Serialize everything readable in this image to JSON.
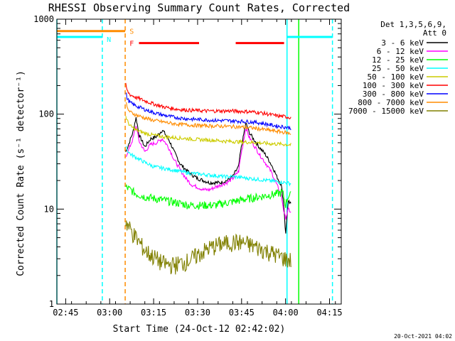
{
  "chart_data": {
    "type": "line",
    "title": "RHESSI Observing Summary Count Rates, Corrected",
    "xlabel": "Start Time (24-Oct-12 02:42:02)",
    "ylabel": "Corrected Count Rate (s⁻¹ detector⁻¹)",
    "yscale": "log",
    "ylim": [
      1,
      1000
    ],
    "y_ticks": [
      {
        "v": 1,
        "label": "1"
      },
      {
        "v": 10,
        "label": "10"
      },
      {
        "v": 100,
        "label": "100"
      },
      {
        "v": 1000,
        "label": "1000"
      }
    ],
    "xlim_minutes": [
      0,
      97
    ],
    "x_ticks": [
      {
        "t": 3,
        "label": "02:45"
      },
      {
        "t": 18,
        "label": "03:00"
      },
      {
        "t": 33,
        "label": "03:15"
      },
      {
        "t": 48,
        "label": "03:30"
      },
      {
        "t": 63,
        "label": "03:45"
      },
      {
        "t": 78,
        "label": "04:00"
      },
      {
        "t": 93,
        "label": "04:15"
      }
    ],
    "legend_title": [
      "Det 1,3,5,6,9,",
      "Att 0"
    ],
    "series": [
      {
        "name": "3 - 6 keV",
        "color": "#000000",
        "points": [
          [
            23.5,
            40
          ],
          [
            24.5,
            48
          ],
          [
            26,
            65
          ],
          [
            27,
            92
          ],
          [
            28,
            60
          ],
          [
            30,
            45
          ],
          [
            32,
            55
          ],
          [
            34,
            58
          ],
          [
            36,
            68
          ],
          [
            38,
            55
          ],
          [
            40,
            40
          ],
          [
            42,
            30
          ],
          [
            44,
            26
          ],
          [
            46,
            23
          ],
          [
            48,
            21
          ],
          [
            50,
            20
          ],
          [
            52,
            19
          ],
          [
            54,
            19
          ],
          [
            56,
            19
          ],
          [
            58,
            20
          ],
          [
            60,
            22
          ],
          [
            62,
            28
          ],
          [
            63.5,
            55
          ],
          [
            64.5,
            80
          ],
          [
            65.5,
            65
          ],
          [
            67,
            55
          ],
          [
            69,
            45
          ],
          [
            71,
            38
          ],
          [
            73,
            30
          ],
          [
            75,
            22
          ],
          [
            76.5,
            18
          ],
          [
            77.5,
            10
          ],
          [
            78,
            5
          ],
          [
            79,
            12
          ],
          [
            80,
            11
          ]
        ]
      },
      {
        "name": "6 - 12 keV",
        "color": "#ff00ff",
        "points": [
          [
            23.5,
            36
          ],
          [
            24.5,
            42
          ],
          [
            26,
            55
          ],
          [
            27,
            75
          ],
          [
            28,
            52
          ],
          [
            30,
            40
          ],
          [
            32,
            48
          ],
          [
            34,
            50
          ],
          [
            36,
            55
          ],
          [
            38,
            45
          ],
          [
            40,
            33
          ],
          [
            42,
            26
          ],
          [
            44,
            21
          ],
          [
            46,
            18
          ],
          [
            48,
            17
          ],
          [
            50,
            16
          ],
          [
            52,
            16
          ],
          [
            54,
            17
          ],
          [
            56,
            18
          ],
          [
            58,
            19
          ],
          [
            60,
            21
          ],
          [
            62,
            25
          ],
          [
            63.5,
            48
          ],
          [
            64.5,
            72
          ],
          [
            65.5,
            58
          ],
          [
            67,
            48
          ],
          [
            69,
            38
          ],
          [
            71,
            31
          ],
          [
            73,
            25
          ],
          [
            75,
            18
          ],
          [
            76.5,
            14
          ],
          [
            77.5,
            9
          ],
          [
            78,
            8
          ],
          [
            79,
            10
          ],
          [
            80,
            9
          ]
        ]
      },
      {
        "name": "12 - 25 keV",
        "color": "#00ff00",
        "points": [
          [
            23.5,
            17
          ],
          [
            25,
            16
          ],
          [
            27,
            14.5
          ],
          [
            30,
            13.5
          ],
          [
            33,
            13
          ],
          [
            36,
            12.5
          ],
          [
            39,
            12
          ],
          [
            42,
            11.5
          ],
          [
            45,
            11
          ],
          [
            48,
            11
          ],
          [
            51,
            11
          ],
          [
            54,
            11
          ],
          [
            57,
            11.5
          ],
          [
            60,
            12
          ],
          [
            63,
            12.5
          ],
          [
            66,
            13
          ],
          [
            69,
            13.5
          ],
          [
            72,
            14
          ],
          [
            75,
            14.5
          ],
          [
            77,
            15
          ],
          [
            78,
            11
          ],
          [
            79,
            14
          ],
          [
            80,
            14
          ]
        ]
      },
      {
        "name": "25 - 50 keV",
        "color": "#00ffff",
        "points": [
          [
            23.5,
            48
          ],
          [
            24,
            42
          ],
          [
            25,
            38
          ],
          [
            27,
            35
          ],
          [
            30,
            31
          ],
          [
            33,
            28
          ],
          [
            36,
            27
          ],
          [
            39,
            26
          ],
          [
            42,
            25
          ],
          [
            45,
            24
          ],
          [
            48,
            23.5
          ],
          [
            51,
            23
          ],
          [
            54,
            22.5
          ],
          [
            57,
            22
          ],
          [
            60,
            22
          ],
          [
            63,
            21.5
          ],
          [
            66,
            21
          ],
          [
            69,
            20.5
          ],
          [
            72,
            20
          ],
          [
            75,
            19.5
          ],
          [
            78,
            19
          ],
          [
            80,
            18.5
          ]
        ]
      },
      {
        "name": "50 - 100 keV",
        "color": "#cccc00",
        "points": [
          [
            23.5,
            95
          ],
          [
            24,
            85
          ],
          [
            25,
            75
          ],
          [
            27,
            68
          ],
          [
            30,
            63
          ],
          [
            33,
            60
          ],
          [
            36,
            58
          ],
          [
            39,
            57
          ],
          [
            42,
            56
          ],
          [
            45,
            55
          ],
          [
            48,
            54
          ],
          [
            51,
            53.5
          ],
          [
            54,
            53
          ],
          [
            57,
            52
          ],
          [
            60,
            51.5
          ],
          [
            63,
            51
          ],
          [
            66,
            50.5
          ],
          [
            69,
            50
          ],
          [
            72,
            49
          ],
          [
            75,
            48.5
          ],
          [
            78,
            48
          ],
          [
            80,
            47.5
          ]
        ]
      },
      {
        "name": "100 - 300 keV",
        "color": "#ff0000",
        "points": [
          [
            23.5,
            205
          ],
          [
            24,
            175
          ],
          [
            25,
            160
          ],
          [
            27,
            150
          ],
          [
            30,
            138
          ],
          [
            33,
            128
          ],
          [
            36,
            120
          ],
          [
            39,
            115
          ],
          [
            42,
            112
          ],
          [
            45,
            110
          ],
          [
            48,
            109
          ],
          [
            51,
            108
          ],
          [
            54,
            108
          ],
          [
            57,
            108
          ],
          [
            60,
            108
          ],
          [
            63,
            107
          ],
          [
            66,
            106
          ],
          [
            69,
            104
          ],
          [
            72,
            100
          ],
          [
            75,
            96
          ],
          [
            78,
            94
          ],
          [
            80,
            92
          ]
        ]
      },
      {
        "name": "300 - 800 keV",
        "color": "#0000ff",
        "points": [
          [
            23.5,
            170
          ],
          [
            24,
            145
          ],
          [
            25,
            132
          ],
          [
            27,
            122
          ],
          [
            30,
            112
          ],
          [
            33,
            104
          ],
          [
            36,
            98
          ],
          [
            39,
            94
          ],
          [
            42,
            91
          ],
          [
            45,
            89
          ],
          [
            48,
            88
          ],
          [
            51,
            87
          ],
          [
            54,
            86
          ],
          [
            57,
            85.5
          ],
          [
            60,
            85
          ],
          [
            63,
            84
          ],
          [
            66,
            83
          ],
          [
            69,
            81
          ],
          [
            72,
            78
          ],
          [
            75,
            75
          ],
          [
            78,
            73
          ],
          [
            80,
            71
          ]
        ]
      },
      {
        "name": "800 - 7000 keV",
        "color": "#ff8c00",
        "points": [
          [
            23.5,
            135
          ],
          [
            24,
            115
          ],
          [
            25,
            105
          ],
          [
            27,
            98
          ],
          [
            30,
            91
          ],
          [
            33,
            86
          ],
          [
            36,
            83
          ],
          [
            39,
            80
          ],
          [
            42,
            78
          ],
          [
            45,
            77
          ],
          [
            48,
            76
          ],
          [
            51,
            75.5
          ],
          [
            54,
            75
          ],
          [
            57,
            74.5
          ],
          [
            60,
            74
          ],
          [
            63,
            73
          ],
          [
            66,
            72
          ],
          [
            69,
            70
          ],
          [
            72,
            68
          ],
          [
            75,
            66
          ],
          [
            78,
            64
          ],
          [
            80,
            62
          ]
        ]
      },
      {
        "name": "7000 - 15000 keV",
        "color": "#808000",
        "points": [
          [
            23.5,
            7.5
          ],
          [
            24.5,
            6.5
          ],
          [
            26,
            5.5
          ],
          [
            28,
            4.5
          ],
          [
            30,
            3.7
          ],
          [
            32,
            3.3
          ],
          [
            34,
            3.0
          ],
          [
            36,
            2.7
          ],
          [
            38,
            2.6
          ],
          [
            40,
            2.6
          ],
          [
            42,
            2.7
          ],
          [
            44,
            2.8
          ],
          [
            46,
            3.0
          ],
          [
            48,
            3.3
          ],
          [
            50,
            3.6
          ],
          [
            52,
            3.9
          ],
          [
            54,
            4.1
          ],
          [
            56,
            4.3
          ],
          [
            58,
            4.4
          ],
          [
            60,
            4.5
          ],
          [
            62,
            4.5
          ],
          [
            64,
            4.4
          ],
          [
            66,
            4.2
          ],
          [
            68,
            4.0
          ],
          [
            70,
            3.8
          ],
          [
            72,
            3.6
          ],
          [
            74,
            3.4
          ],
          [
            76,
            3.2
          ],
          [
            78,
            3.0
          ],
          [
            80,
            2.9
          ]
        ]
      }
    ],
    "annotations": [
      {
        "label": "S",
        "color": "#ff8c00"
      },
      {
        "label": "F",
        "color": "#ff0000"
      },
      {
        "label": "N",
        "color": "#00ffff"
      }
    ],
    "intervals": {
      "saa": {
        "t0": 0,
        "t1": 23.3,
        "level": 750,
        "color": "#ff8c00"
      },
      "flare": [
        {
          "t0": 28,
          "t1": 48.5,
          "level": 560,
          "color": "#ff0000"
        },
        {
          "t0": 61,
          "t1": 77.5,
          "level": 560,
          "color": "#ff0000"
        }
      ],
      "night": [
        {
          "t0": 0,
          "t1": 15.5,
          "level": 650,
          "color": "#00ffff"
        },
        {
          "t0": 78.5,
          "t1": 94,
          "level": 650,
          "color": "#00ffff"
        }
      ]
    },
    "vlines": [
      {
        "t": 0,
        "color": "#00ffff",
        "dashed": false
      },
      {
        "t": 15.5,
        "color": "#00ffff",
        "dashed": true
      },
      {
        "t": 23.3,
        "color": "#ff8c00",
        "dashed": true
      },
      {
        "t": 78.5,
        "color": "#00ffff",
        "dashed": false
      },
      {
        "t": 82.5,
        "color": "#00ff00",
        "dashed": false
      },
      {
        "t": 94,
        "color": "#00ffff",
        "dashed": true
      }
    ]
  },
  "footer": {
    "timestamp": "20-Oct-2021 04:02"
  }
}
